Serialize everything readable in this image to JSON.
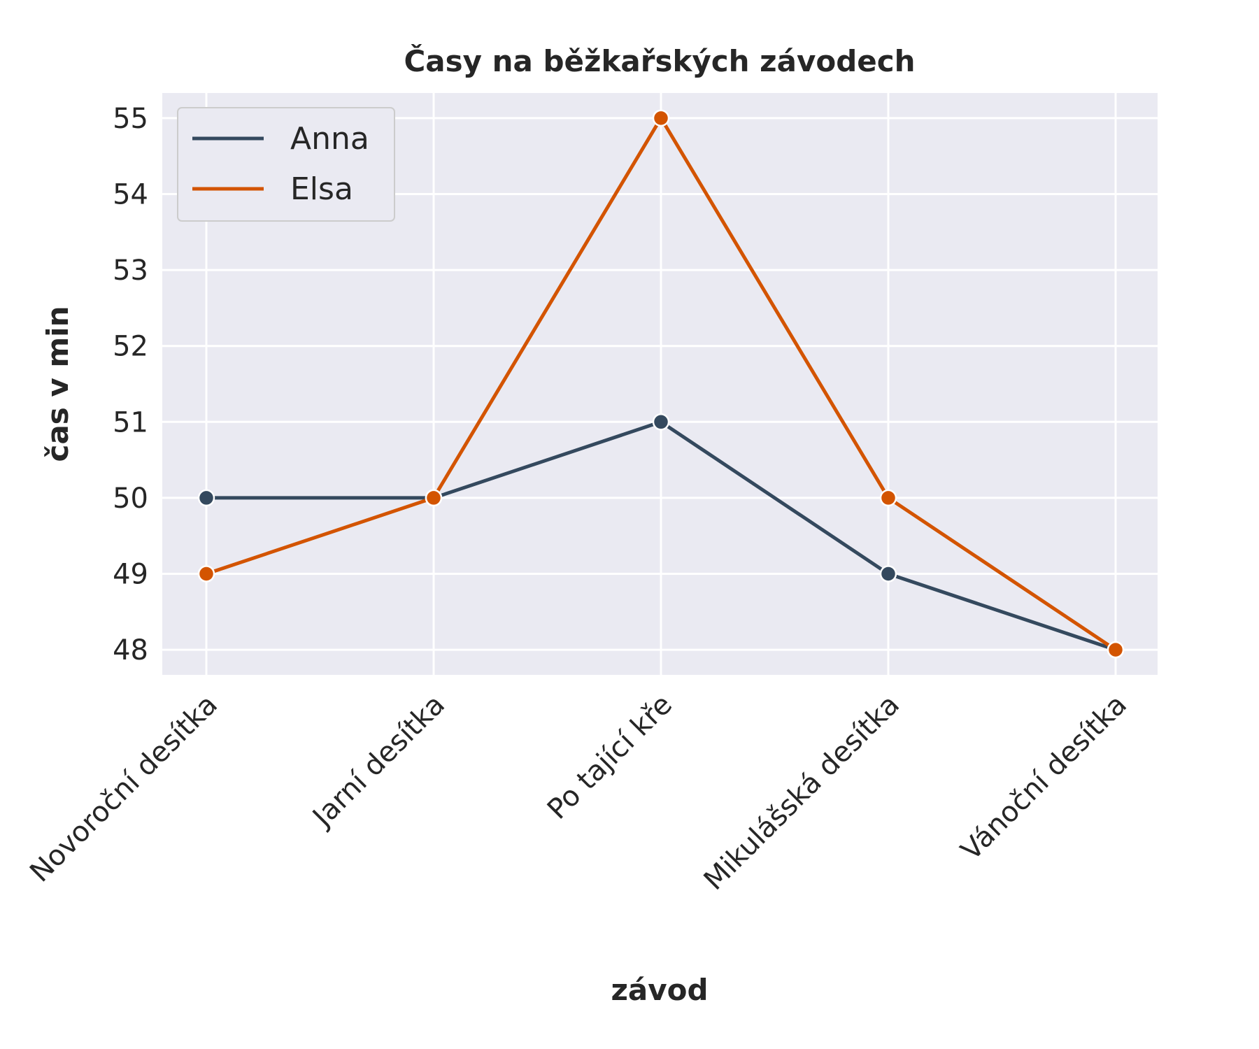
{
  "chart_data": {
    "type": "line",
    "title": "Časy na běžkařských závodech",
    "xlabel": "závod",
    "ylabel": "čas v min",
    "categories": [
      "Novoroční desítka",
      "Jarní desítka",
      "Po tající kře",
      "Mikulášská desítka",
      "Vánoční desítka"
    ],
    "series": [
      {
        "name": "Anna",
        "color": "#34495e",
        "values": [
          50,
          50,
          51,
          49,
          48
        ]
      },
      {
        "name": "Elsa",
        "color": "#d35400",
        "values": [
          49,
          50,
          55,
          50,
          48
        ]
      }
    ],
    "ylim": [
      47.67,
      55.33
    ],
    "yticks": [
      48,
      49,
      50,
      51,
      52,
      53,
      54,
      55
    ],
    "grid": true,
    "legend_position": "top-left",
    "background": "#eaeaf2",
    "xtick_rotation_deg": 45
  }
}
